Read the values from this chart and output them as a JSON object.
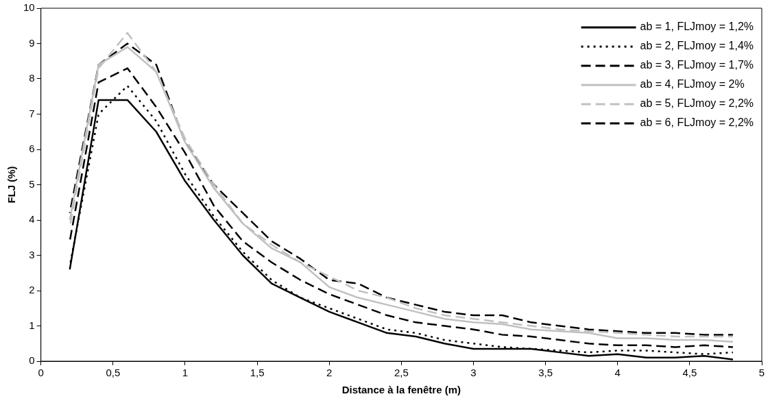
{
  "chart_data": {
    "type": "line",
    "xlabel": "Distance à la fenêtre (m)",
    "ylabel": "FLJ (%)",
    "x": [
      0.2,
      0.4,
      0.6,
      0.8,
      1.0,
      1.2,
      1.4,
      1.6,
      1.8,
      2.0,
      2.2,
      2.4,
      2.6,
      2.8,
      3.0,
      3.2,
      3.4,
      3.6,
      3.8,
      4.0,
      4.2,
      4.4,
      4.6,
      4.8
    ],
    "series": [
      {
        "name": "ab = 1, FLJmoy = 1,2%",
        "color": "#000000",
        "line_style": "solid",
        "values": [
          2.6,
          7.4,
          7.4,
          6.5,
          5.1,
          4.0,
          3.0,
          2.2,
          1.8,
          1.4,
          1.1,
          0.8,
          0.7,
          0.5,
          0.35,
          0.35,
          0.35,
          0.25,
          0.15,
          0.2,
          0.1,
          0.1,
          0.15,
          0.05
        ]
      },
      {
        "name": "ab = 2, FLJmoy = 1,4%",
        "color": "#000000",
        "line_style": "dotted",
        "values": [
          2.7,
          7.0,
          7.8,
          6.8,
          5.3,
          4.1,
          3.1,
          2.3,
          1.8,
          1.5,
          1.2,
          0.9,
          0.8,
          0.6,
          0.5,
          0.4,
          0.35,
          0.3,
          0.25,
          0.3,
          0.3,
          0.25,
          0.2,
          0.25
        ]
      },
      {
        "name": "ab = 3, FLJmoy = 1,7%",
        "color": "#000000",
        "line_style": "dashed",
        "values": [
          3.4,
          7.9,
          8.3,
          7.2,
          5.9,
          4.4,
          3.4,
          2.8,
          2.3,
          1.9,
          1.6,
          1.3,
          1.1,
          1.0,
          0.9,
          0.75,
          0.7,
          0.6,
          0.5,
          0.45,
          0.45,
          0.4,
          0.45,
          0.4
        ]
      },
      {
        "name": "ab = 4, FLJmoy = 2%",
        "color": "#c0c0c0",
        "line_style": "solid",
        "values": [
          4.0,
          8.4,
          8.9,
          8.2,
          6.2,
          4.9,
          3.9,
          3.2,
          2.8,
          2.1,
          1.8,
          1.6,
          1.4,
          1.2,
          1.1,
          1.05,
          0.9,
          0.85,
          0.8,
          0.65,
          0.65,
          0.6,
          0.6,
          0.55
        ]
      },
      {
        "name": "ab = 5, FLJmoy = 2,2%",
        "color": "#c0c0c0",
        "line_style": "dashed",
        "values": [
          3.8,
          8.3,
          9.3,
          8.2,
          6.3,
          5.0,
          3.9,
          3.3,
          2.8,
          2.4,
          2.0,
          1.8,
          1.5,
          1.3,
          1.2,
          1.1,
          1.0,
          0.9,
          0.85,
          0.8,
          0.75,
          0.7,
          0.7,
          0.7
        ]
      },
      {
        "name": "ab = 6, FLJmoy = 2,2%",
        "color": "#000000",
        "line_style": "dashed",
        "values": [
          4.2,
          8.4,
          9.0,
          8.4,
          6.2,
          5.0,
          4.2,
          3.4,
          2.9,
          2.3,
          2.2,
          1.8,
          1.6,
          1.4,
          1.3,
          1.3,
          1.1,
          1.0,
          0.9,
          0.85,
          0.8,
          0.8,
          0.75,
          0.75
        ]
      }
    ],
    "xlim": [
      0,
      5
    ],
    "xticks": [
      0,
      {
        "value": 0.5,
        "label": "0,5"
      },
      1,
      {
        "value": 1.5,
        "label": "1,5"
      },
      2,
      {
        "value": 2.5,
        "label": "2,5"
      },
      3,
      {
        "value": 3.5,
        "label": "3,5"
      },
      4,
      {
        "value": 4.5,
        "label": "4,5"
      },
      5
    ],
    "ylim": [
      0,
      10
    ],
    "yticks": [
      0,
      1,
      2,
      3,
      4,
      5,
      6,
      7,
      8,
      9,
      10
    ],
    "legend": "top right",
    "grid": false,
    "marker": "none"
  }
}
